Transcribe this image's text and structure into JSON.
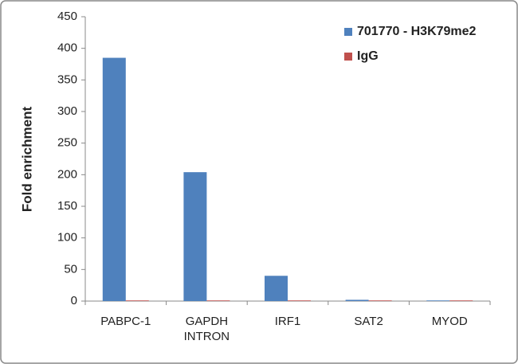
{
  "chart_data": {
    "type": "bar",
    "y_label": "Fold enrichment",
    "categories": [
      "PABPC-1",
      "GAPDH INTRON",
      "IRF1",
      "SAT2",
      "MYOD"
    ],
    "series": [
      {
        "name": "701770 - H3K79me2",
        "color": "#4f81bd",
        "values": [
          385,
          204,
          40,
          2,
          1
        ]
      },
      {
        "name": "IgG",
        "color": "#c0504d",
        "values": [
          1,
          1,
          1,
          1,
          1
        ]
      }
    ],
    "ylim": [
      0,
      450
    ],
    "yticks": [
      0,
      50,
      100,
      150,
      200,
      250,
      300,
      350,
      400,
      450
    ],
    "legend": "top-right"
  }
}
